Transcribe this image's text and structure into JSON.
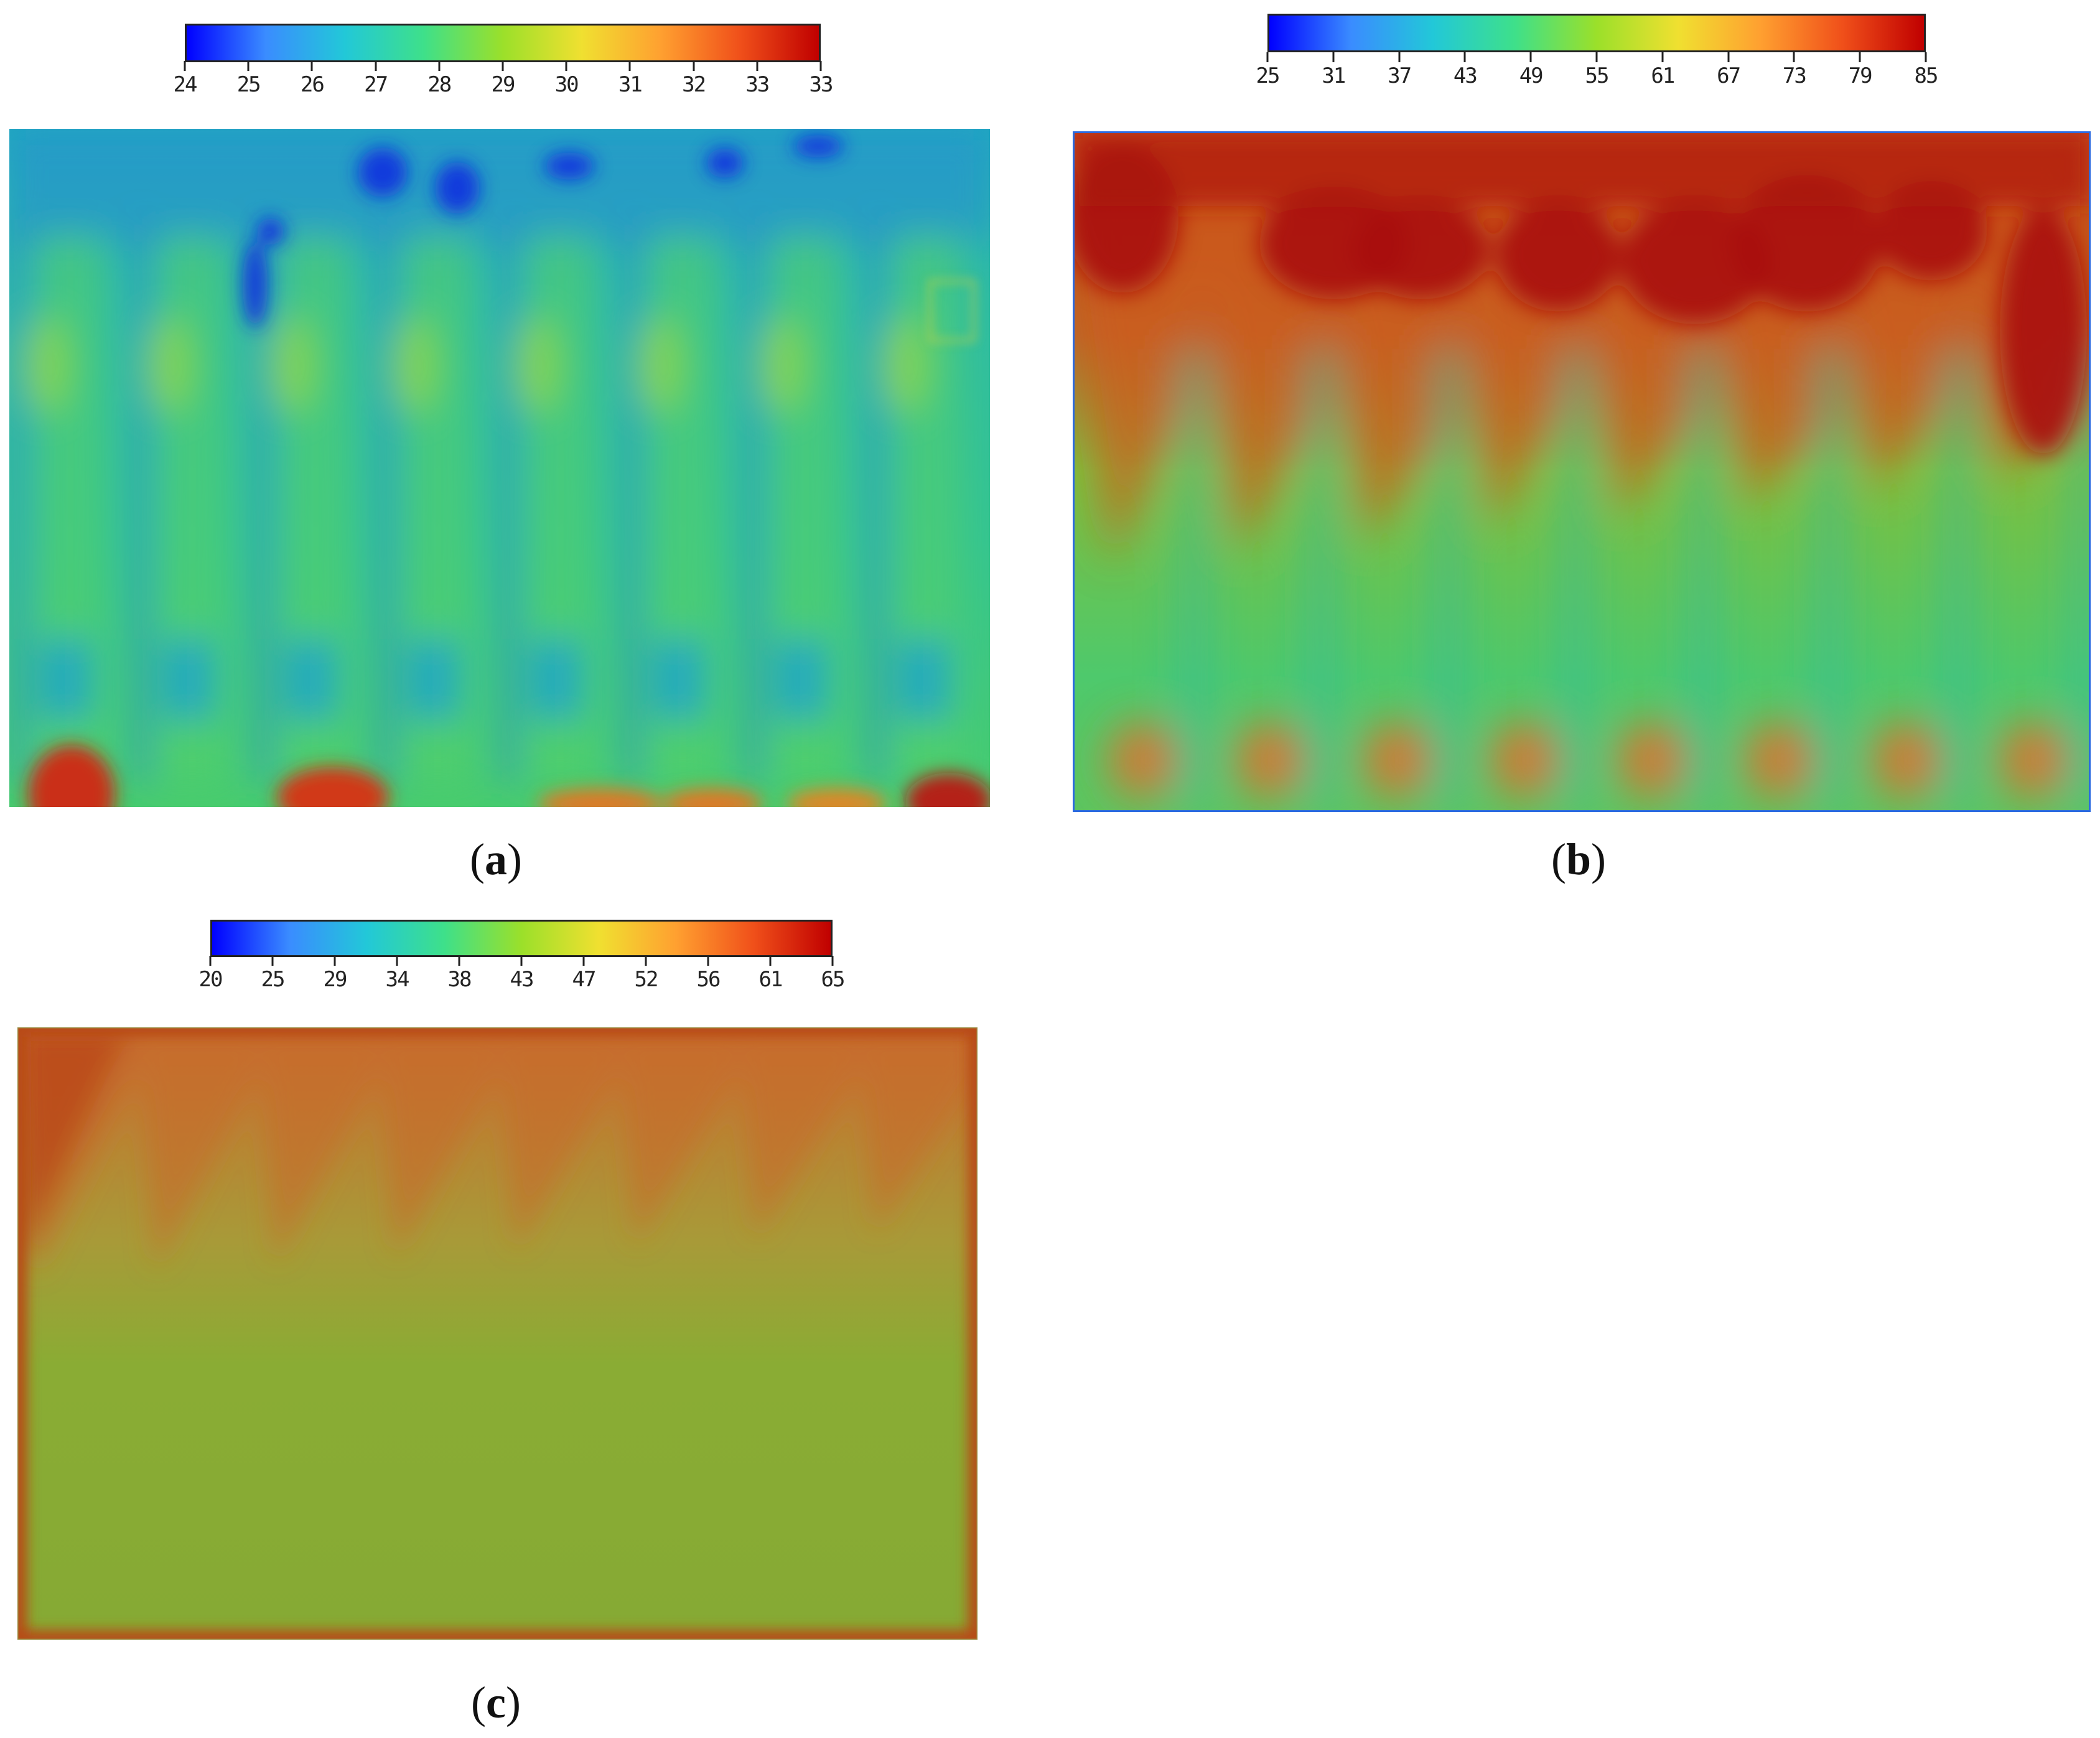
{
  "chart_data": [
    {
      "type": "heatmap",
      "panel_label": "a",
      "colorbar": {
        "ticks": [
          "24",
          "25",
          "26",
          "27",
          "28",
          "29",
          "30",
          "31",
          "32",
          "33",
          "33"
        ],
        "range": [
          24,
          33
        ],
        "colormap": [
          "#0000ff",
          "#3a8cff",
          "#22c8d8",
          "#3ee08a",
          "#9be02a",
          "#f0e030",
          "#ffa030",
          "#f0501a",
          "#c00000"
        ]
      },
      "description": "Temperature field: mostly 26-28 with blue cool spots near top, eight repeating vertical bands, warm spots at bottom corners"
    },
    {
      "type": "heatmap",
      "panel_label": "b",
      "colorbar": {
        "ticks": [
          "25",
          "31",
          "37",
          "43",
          "49",
          "55",
          "61",
          "67",
          "73",
          "79",
          "85"
        ],
        "range": [
          25,
          85
        ],
        "colormap": [
          "#0000ff",
          "#3a8cff",
          "#22c8d8",
          "#3ee08a",
          "#9be02a",
          "#f0e030",
          "#ffa030",
          "#f0501a",
          "#c00000"
        ]
      },
      "description": "Temperature field: hot (75-85) upper region with sawtooth fronts, 55-65 middle, warm spots near bottom, eight vertical bands"
    },
    {
      "type": "heatmap",
      "panel_label": "c",
      "colorbar": {
        "ticks": [
          "20",
          "25",
          "29",
          "34",
          "38",
          "43",
          "47",
          "52",
          "56",
          "61",
          "65"
        ],
        "range": [
          20,
          65
        ],
        "colormap": [
          "#0000ff",
          "#3a8cff",
          "#22c8d8",
          "#3ee08a",
          "#9be02a",
          "#f0e030",
          "#ffa030",
          "#f0501a",
          "#c00000"
        ]
      },
      "description": "Temperature field: mostly uniform around 47-50 with warmer (55-60) sawtooth upper region and hot edges"
    }
  ],
  "captions": {
    "a": {
      "open": "(",
      "letter": "a",
      "close": ")"
    },
    "b": {
      "open": "(",
      "letter": "b",
      "close": ")"
    },
    "c": {
      "open": "(",
      "letter": "c",
      "close": ")"
    }
  }
}
